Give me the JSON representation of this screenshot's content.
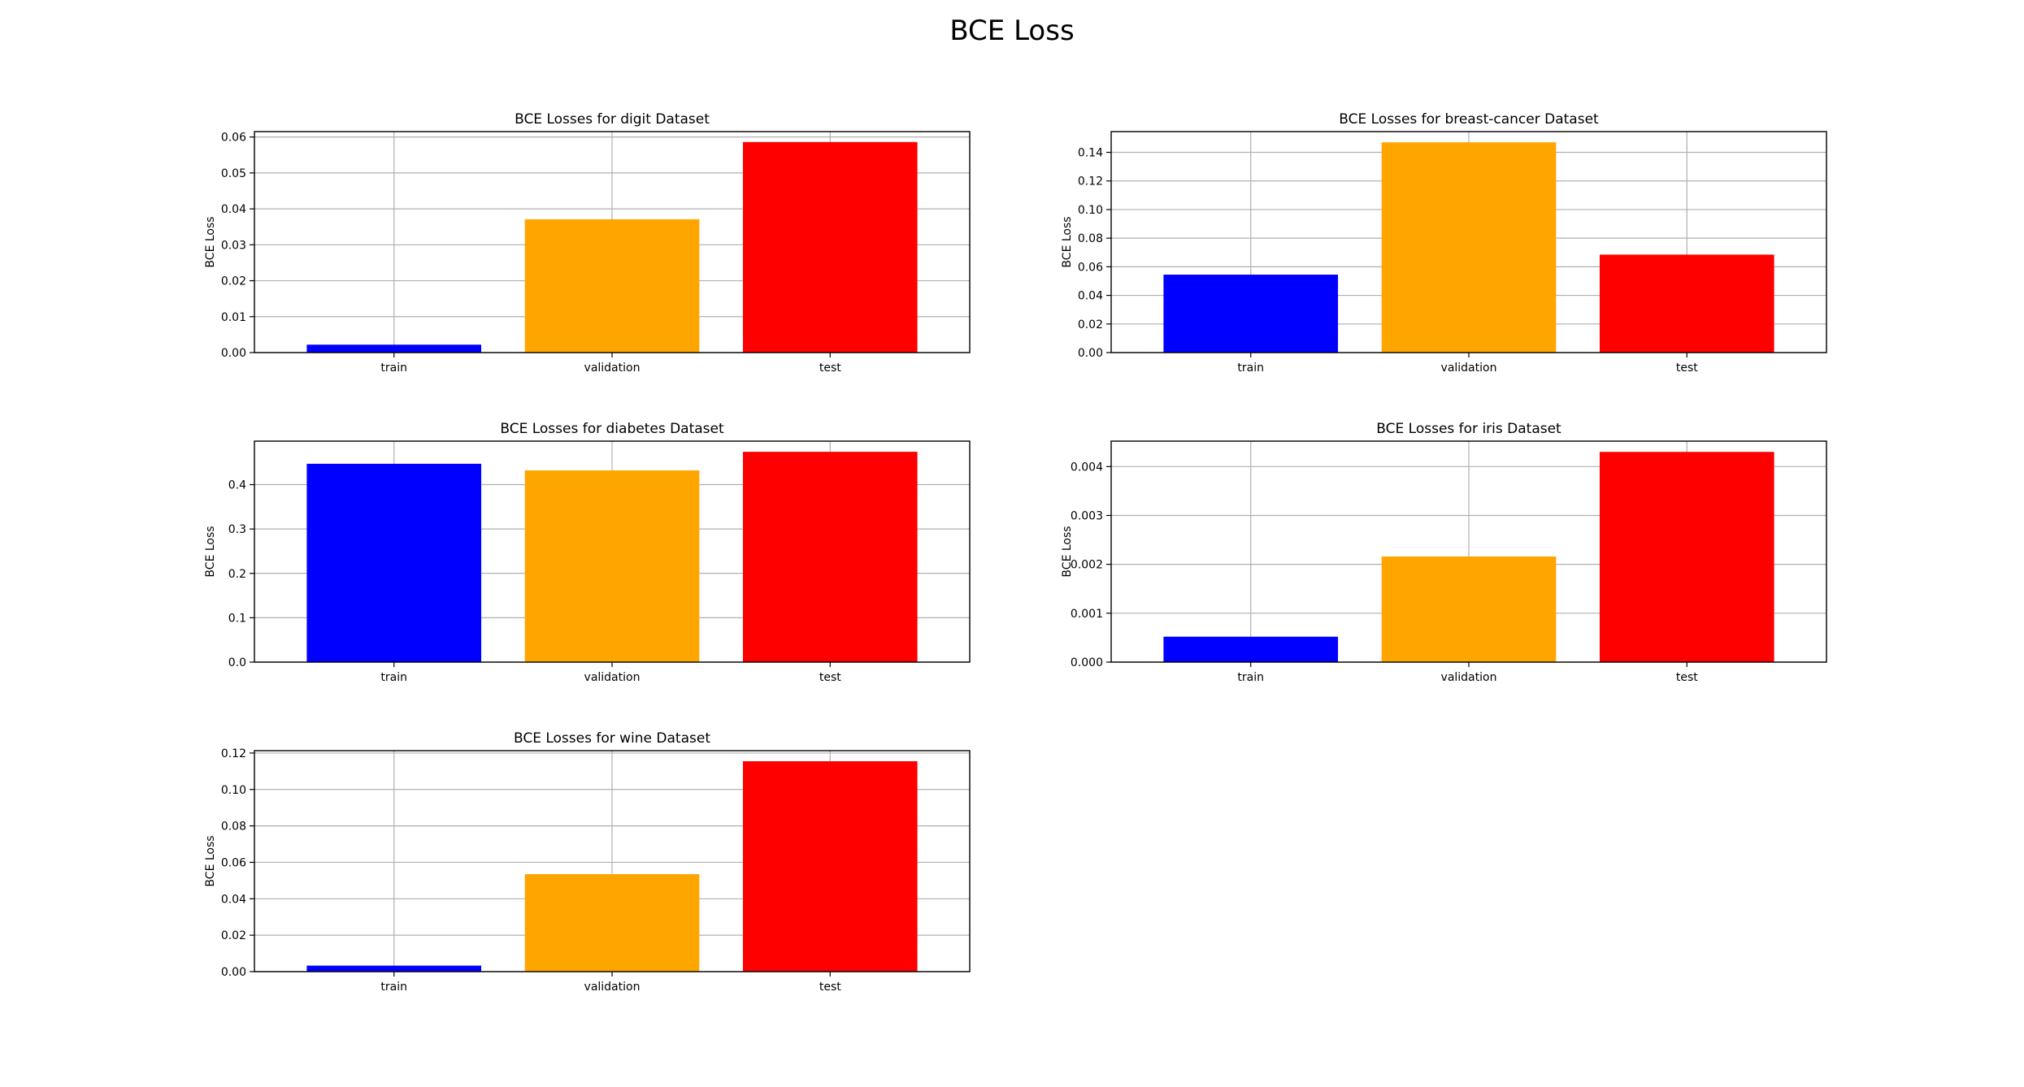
{
  "figure": {
    "title": "BCE Loss"
  },
  "chart_data": [
    {
      "type": "bar",
      "title": "BCE Losses for digit Dataset",
      "xlabel": "",
      "ylabel": "BCE Loss",
      "categories": [
        "train",
        "validation",
        "test"
      ],
      "values": [
        0.0022,
        0.0371,
        0.0586
      ],
      "colors": [
        "#0000ff",
        "#ffa500",
        "#ff0000"
      ],
      "ylim": [
        0,
        0.0615
      ],
      "yticks": [
        0.0,
        0.01,
        0.02,
        0.03,
        0.04,
        0.05,
        0.06
      ],
      "yticklabels": [
        "0.00",
        "0.01",
        "0.02",
        "0.03",
        "0.04",
        "0.05",
        "0.06"
      ],
      "grid": true
    },
    {
      "type": "bar",
      "title": "BCE Losses for breast-cancer Dataset",
      "xlabel": "",
      "ylabel": "BCE Loss",
      "categories": [
        "train",
        "validation",
        "test"
      ],
      "values": [
        0.0545,
        0.147,
        0.0685
      ],
      "colors": [
        "#0000ff",
        "#ffa500",
        "#ff0000"
      ],
      "ylim": [
        0,
        0.1545
      ],
      "yticks": [
        0.0,
        0.02,
        0.04,
        0.06,
        0.08,
        0.1,
        0.12,
        0.14
      ],
      "yticklabels": [
        "0.00",
        "0.02",
        "0.04",
        "0.06",
        "0.08",
        "0.10",
        "0.12",
        "0.14"
      ],
      "grid": true
    },
    {
      "type": "bar",
      "title": "BCE Losses for diabetes Dataset",
      "xlabel": "",
      "ylabel": "BCE Loss",
      "categories": [
        "train",
        "validation",
        "test"
      ],
      "values": [
        0.447,
        0.432,
        0.474
      ],
      "colors": [
        "#0000ff",
        "#ffa500",
        "#ff0000"
      ],
      "ylim": [
        0,
        0.498
      ],
      "yticks": [
        0.0,
        0.1,
        0.2,
        0.3,
        0.4
      ],
      "yticklabels": [
        "0.0",
        "0.1",
        "0.2",
        "0.3",
        "0.4"
      ],
      "grid": true
    },
    {
      "type": "bar",
      "title": "BCE Losses for iris Dataset",
      "xlabel": "",
      "ylabel": "BCE Loss",
      "categories": [
        "train",
        "validation",
        "test"
      ],
      "values": [
        0.00052,
        0.00216,
        0.0043
      ],
      "colors": [
        "#0000ff",
        "#ffa500",
        "#ff0000"
      ],
      "ylim": [
        0,
        0.00452
      ],
      "yticks": [
        0.0,
        0.001,
        0.002,
        0.003,
        0.004
      ],
      "yticklabels": [
        "0.000",
        "0.001",
        "0.002",
        "0.003",
        "0.004"
      ],
      "grid": true
    },
    {
      "type": "bar",
      "title": "BCE Losses for wine Dataset",
      "xlabel": "",
      "ylabel": "BCE Loss",
      "categories": [
        "train",
        "validation",
        "test"
      ],
      "values": [
        0.0033,
        0.0535,
        0.1155
      ],
      "colors": [
        "#0000ff",
        "#ffa500",
        "#ff0000"
      ],
      "ylim": [
        0,
        0.1213
      ],
      "yticks": [
        0.0,
        0.02,
        0.04,
        0.06,
        0.08,
        0.1,
        0.12
      ],
      "yticklabels": [
        "0.00",
        "0.02",
        "0.04",
        "0.06",
        "0.08",
        "0.10",
        "0.12"
      ],
      "grid": true
    }
  ]
}
